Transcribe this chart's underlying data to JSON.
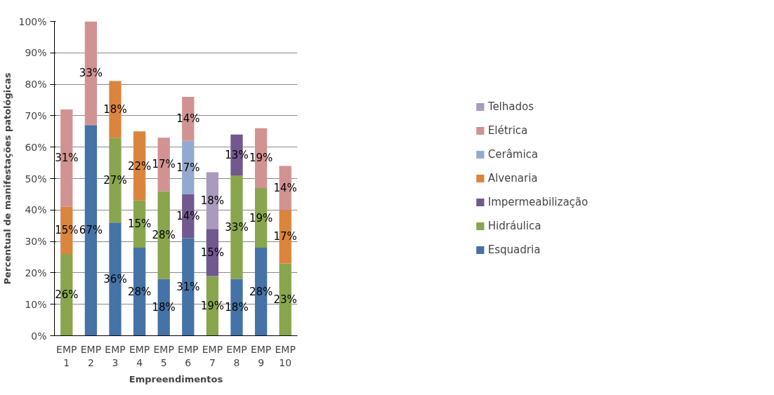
{
  "chart_data": {
    "type": "bar",
    "stacked": true,
    "xlabel": "Empreendimentos",
    "ylabel": "Percentual de manifestações patológicas",
    "categories": [
      "EMP 1",
      "EMP 2",
      "EMP 3",
      "EMP 4",
      "EMP 5",
      "EMP 6",
      "EMP 7",
      "EMP 8",
      "EMP 9",
      "EMP 10"
    ],
    "ylim": [
      0,
      100
    ],
    "yticks": [
      {
        "value": 0,
        "label": "0%"
      },
      {
        "value": 10,
        "label": "10%"
      },
      {
        "value": 20,
        "label": "20%"
      },
      {
        "value": 30,
        "label": "30%"
      },
      {
        "value": 40,
        "label": "40%"
      },
      {
        "value": 50,
        "label": "50%"
      },
      {
        "value": 60,
        "label": "60%"
      },
      {
        "value": 70,
        "label": "70%"
      },
      {
        "value": 80,
        "label": "80%"
      },
      {
        "value": 90,
        "label": "90%"
      },
      {
        "value": 100,
        "label": "100%"
      }
    ],
    "grid": "y",
    "legend": "right",
    "series": [
      {
        "name": "Esquadria",
        "color": "#4572a7",
        "values": [
          null,
          67,
          36,
          28,
          18,
          31,
          null,
          18,
          28,
          null
        ],
        "value_labels": [
          null,
          "67%",
          "36%",
          "28%",
          "18%",
          "31%",
          null,
          "18%",
          "28%",
          null
        ]
      },
      {
        "name": "Hidráulica",
        "color": "#89a54e",
        "values": [
          26,
          null,
          27,
          15,
          28,
          null,
          19,
          33,
          19,
          23
        ],
        "value_labels": [
          "26%",
          null,
          "27%",
          "15%",
          "28%",
          null,
          "19%",
          "33%",
          "19%",
          "23%"
        ]
      },
      {
        "name": "Impermeabilização",
        "color": "#71588f",
        "values": [
          null,
          null,
          null,
          null,
          null,
          14,
          15,
          13,
          null,
          null
        ],
        "value_labels": [
          null,
          null,
          null,
          null,
          null,
          "14%",
          "15%",
          "13%",
          null,
          null
        ]
      },
      {
        "name": "Alvenaria",
        "color": "#db843d",
        "values": [
          15,
          null,
          18,
          22,
          null,
          null,
          null,
          null,
          null,
          17
        ],
        "value_labels": [
          "15%",
          null,
          "18%",
          "22%",
          null,
          null,
          null,
          null,
          null,
          "17%"
        ]
      },
      {
        "name": "Cerâmica",
        "color": "#93a9cf",
        "values": [
          null,
          null,
          null,
          null,
          null,
          17,
          null,
          null,
          null,
          null
        ],
        "value_labels": [
          null,
          null,
          null,
          null,
          null,
          "17%",
          null,
          null,
          null,
          null
        ]
      },
      {
        "name": "Elétrica",
        "color": "#d19392",
        "values": [
          31,
          33,
          null,
          null,
          17,
          14,
          null,
          null,
          19,
          14
        ],
        "value_labels": [
          "31%",
          "33%",
          null,
          null,
          "17%",
          "14%",
          null,
          null,
          "19%",
          "14%"
        ]
      },
      {
        "name": "Telhados",
        "color": "#a99bbd",
        "values": [
          null,
          null,
          null,
          null,
          null,
          null,
          18,
          null,
          null,
          null
        ],
        "value_labels": [
          null,
          null,
          null,
          null,
          null,
          null,
          "18%",
          null,
          null,
          null
        ]
      }
    ]
  }
}
